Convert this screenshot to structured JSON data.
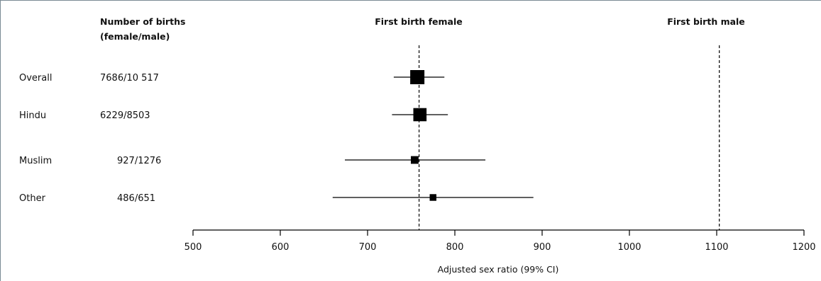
{
  "chart_data": {
    "type": "forest",
    "headers": {
      "births": [
        "Number of births",
        "(female/male)"
      ],
      "female": "First birth female",
      "male": "First birth male"
    },
    "xlabel": "Adjusted sex ratio (99% CI)",
    "xlim": [
      500,
      1200
    ],
    "xticks": [
      500,
      600,
      700,
      800,
      900,
      1000,
      1100,
      1200
    ],
    "reference_lines": [
      {
        "name": "First birth female",
        "x": 759
      },
      {
        "name": "First birth male",
        "x": 1103
      }
    ],
    "rows": [
      {
        "label": "Overall",
        "births": "7686/10 517",
        "estimate": 757,
        "lower": 730,
        "upper": 788,
        "weight": 1.0
      },
      {
        "label": "Hindu",
        "births": "6229/8503",
        "estimate": 760,
        "lower": 728,
        "upper": 792,
        "weight": 0.81
      },
      {
        "label": "Muslim",
        "births": "927/1276",
        "estimate": 754,
        "lower": 674,
        "upper": 835,
        "weight": 0.12
      },
      {
        "label": "Other",
        "births": "486/651",
        "estimate": 775,
        "lower": 660,
        "upper": 890,
        "weight": 0.06
      }
    ]
  }
}
